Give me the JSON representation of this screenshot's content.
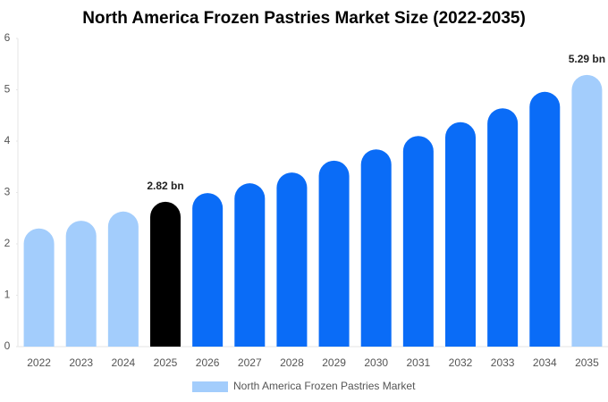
{
  "chart_data": {
    "type": "bar",
    "title": "North America Frozen Pastries Market Size (2022-2035)",
    "categories": [
      "2022",
      "2023",
      "2024",
      "2025",
      "2026",
      "2027",
      "2028",
      "2029",
      "2030",
      "2031",
      "2032",
      "2033",
      "2034",
      "2035"
    ],
    "series": [
      {
        "name": "North America Frozen Pastries Market",
        "color": "#a3cdfc",
        "values": [
          2.3,
          2.45,
          2.63,
          2.82,
          2.99,
          3.18,
          3.39,
          3.62,
          3.84,
          4.1,
          4.37,
          4.64,
          4.96,
          5.29
        ],
        "value_labels": [
          null,
          null,
          null,
          "2.82 bn",
          null,
          null,
          null,
          null,
          null,
          null,
          null,
          null,
          null,
          "5.29 bn"
        ],
        "colors": [
          "#a3cdfc",
          "#a3cdfc",
          "#a3cdfc",
          "#000000",
          "#0a6cf7",
          "#0a6cf7",
          "#0a6cf7",
          "#0a6cf7",
          "#0a6cf7",
          "#0a6cf7",
          "#0a6cf7",
          "#0a6cf7",
          "#0a6cf7",
          "#a3cdfc"
        ]
      }
    ],
    "ylim": [
      0,
      6
    ],
    "yticks": [
      0,
      1,
      2,
      3,
      4,
      5,
      6
    ],
    "grid": false
  }
}
